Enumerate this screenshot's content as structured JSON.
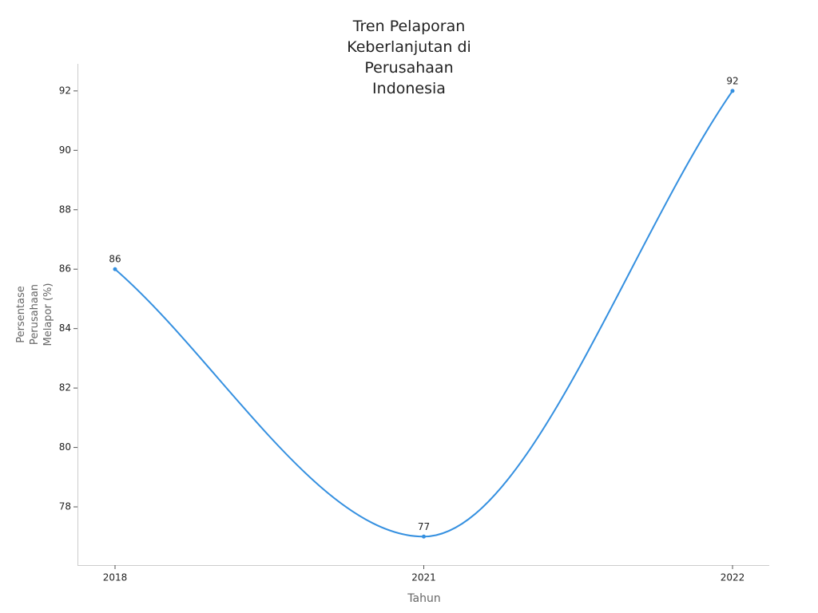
{
  "chart_data": {
    "type": "line",
    "title": "Tren Pelaporan Keberlanjutan di Perusahaan Indonesia",
    "x_label": "Tahun",
    "y_label": "Persentase Perusahaan Melapor (%)",
    "categories": [
      "2018",
      "2021",
      "2022"
    ],
    "series": [
      {
        "name": "Persentase",
        "color": "#3590e0",
        "values": [
          86,
          77,
          92
        ]
      }
    ],
    "ylim": [
      76.04,
      92.91
    ],
    "yticks": [
      78,
      80,
      82,
      84,
      86,
      88,
      90,
      92
    ],
    "grid": false
  }
}
